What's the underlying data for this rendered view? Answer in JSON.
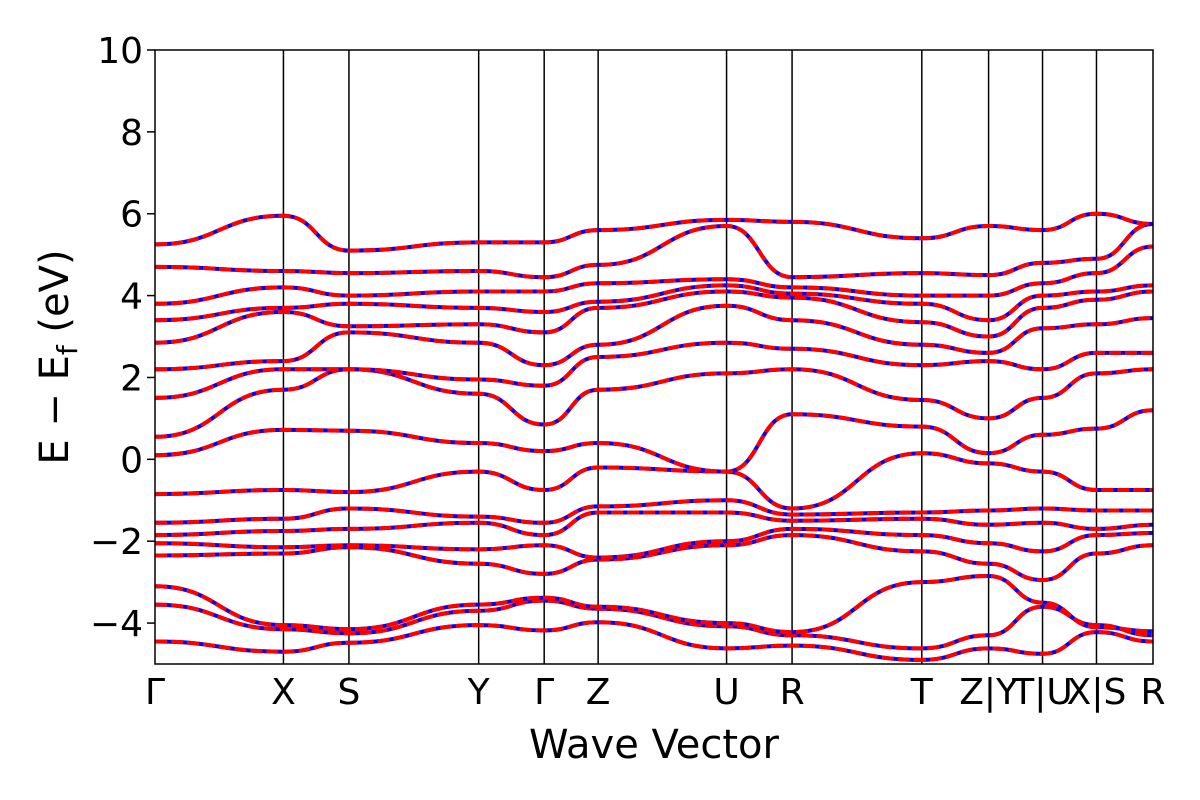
{
  "chart_data": {
    "type": "line",
    "xlabel": "Wave Vector",
    "ylabel": "E − E",
    "ylabel_sub": "f",
    "ylabel_unit": " (eV)",
    "ylim": [
      -5,
      10
    ],
    "yticks": [
      {
        "value": -4,
        "label": "−4"
      },
      {
        "value": -2,
        "label": "−2"
      },
      {
        "value": 0,
        "label": "0"
      },
      {
        "value": 2,
        "label": "2"
      },
      {
        "value": 4,
        "label": "4"
      },
      {
        "value": 6,
        "label": "6"
      },
      {
        "value": 8,
        "label": "8"
      },
      {
        "value": 10,
        "label": "10"
      }
    ],
    "xlim": [
      0,
      7.77
    ],
    "kpoints": [
      {
        "x": 0.0,
        "label": "Γ"
      },
      {
        "x": 1.0,
        "label": "X"
      },
      {
        "x": 1.51,
        "label": "S"
      },
      {
        "x": 2.52,
        "label": "Y"
      },
      {
        "x": 3.03,
        "label": "Γ"
      },
      {
        "x": 3.45,
        "label": "Z"
      },
      {
        "x": 4.45,
        "label": "U"
      },
      {
        "x": 4.96,
        "label": "R"
      },
      {
        "x": 5.97,
        "label": "T"
      },
      {
        "x": 6.49,
        "label": "Z|Y"
      },
      {
        "x": 6.91,
        "label": "T|U"
      },
      {
        "x": 7.33,
        "label": "X|S"
      },
      {
        "x": 7.77,
        "label": "R"
      }
    ],
    "series_styles": [
      {
        "color": "#0000ff",
        "style": "solid"
      },
      {
        "color": "#ff0000",
        "style": "dashed"
      }
    ],
    "bands": [
      [
        -4.45,
        -4.7,
        -4.48,
        -4.05,
        -4.18,
        -3.98,
        -4.62,
        -4.55,
        -4.9,
        -4.62,
        -4.75,
        -4.22,
        -4.45
      ],
      [
        -3.55,
        -4.15,
        -4.25,
        -3.7,
        -3.45,
        -3.65,
        -4.08,
        -4.3,
        -4.62,
        -4.3,
        -3.6,
        -4.05,
        -4.3
      ],
      [
        -3.1,
        -4.05,
        -4.15,
        -3.55,
        -3.38,
        -3.6,
        -4.0,
        -4.22,
        -3.0,
        -2.85,
        -3.5,
        -4.1,
        -4.2
      ],
      [
        -2.35,
        -2.3,
        -2.15,
        -2.55,
        -2.8,
        -2.45,
        -2.1,
        -1.85,
        -2.25,
        -2.55,
        -2.95,
        -2.3,
        -2.1
      ],
      [
        -2.05,
        -2.15,
        -2.1,
        -2.2,
        -2.1,
        -2.4,
        -2.0,
        -1.7,
        -1.85,
        -2.05,
        -2.25,
        -1.85,
        -1.8
      ],
      [
        -1.85,
        -1.75,
        -1.7,
        -1.55,
        -1.85,
        -1.3,
        -1.3,
        -1.5,
        -1.45,
        -1.6,
        -1.55,
        -1.7,
        -1.6
      ],
      [
        -1.55,
        -1.45,
        -1.2,
        -1.4,
        -1.55,
        -1.15,
        -1.0,
        -1.35,
        -1.3,
        -1.25,
        -1.2,
        -1.25,
        -1.25
      ],
      [
        -0.85,
        -0.75,
        -0.8,
        -0.3,
        -0.75,
        -0.2,
        -0.3,
        -1.2,
        0.15,
        -0.1,
        -0.3,
        -0.75,
        -0.75
      ],
      [
        0.1,
        0.72,
        0.7,
        0.4,
        0.2,
        0.4,
        -0.3,
        1.1,
        0.8,
        0.15,
        0.6,
        0.75,
        1.2
      ],
      [
        0.55,
        1.7,
        2.2,
        1.6,
        0.85,
        1.7,
        2.1,
        2.2,
        1.45,
        1.0,
        1.5,
        2.1,
        2.2
      ],
      [
        1.5,
        2.2,
        2.2,
        1.95,
        1.8,
        2.5,
        2.85,
        2.7,
        2.3,
        2.4,
        2.2,
        2.6,
        2.6
      ],
      [
        2.2,
        2.4,
        3.1,
        2.85,
        2.3,
        2.8,
        3.75,
        3.4,
        2.8,
        2.6,
        3.2,
        3.3,
        3.45
      ],
      [
        2.85,
        3.6,
        3.25,
        3.3,
        3.1,
        3.7,
        4.1,
        3.95,
        3.35,
        3.0,
        3.7,
        3.9,
        4.1
      ],
      [
        3.4,
        3.7,
        3.8,
        3.7,
        3.6,
        3.85,
        4.25,
        4.05,
        3.8,
        3.4,
        4.0,
        4.1,
        4.25
      ],
      [
        3.8,
        4.2,
        4.0,
        4.1,
        4.1,
        4.3,
        4.4,
        4.2,
        4.0,
        4.0,
        4.3,
        4.55,
        5.2
      ],
      [
        4.7,
        4.6,
        4.55,
        4.6,
        4.45,
        4.75,
        5.7,
        4.45,
        4.55,
        4.5,
        4.8,
        4.9,
        5.75
      ],
      [
        5.25,
        5.95,
        5.1,
        5.3,
        5.3,
        5.6,
        5.85,
        5.8,
        5.4,
        5.7,
        5.6,
        6.0,
        5.75
      ]
    ]
  }
}
